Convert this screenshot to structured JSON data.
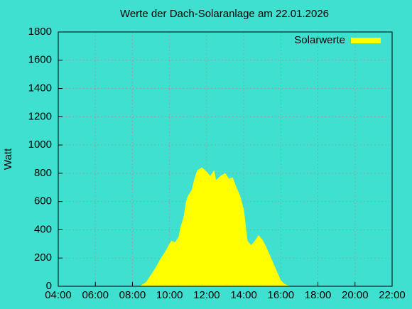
{
  "chart_data": {
    "type": "area",
    "title": "Werte der Dach-Solaranlage am 22.01.2026",
    "y_label": "Watt",
    "series": [
      {
        "name": "Solarwerte",
        "color": "#ffff00",
        "x": [
          8.4,
          8.75,
          9.0,
          9.25,
          9.5,
          9.75,
          10.0,
          10.1,
          10.3,
          10.5,
          10.6,
          10.75,
          10.9,
          11.0,
          11.2,
          11.35,
          11.5,
          11.75,
          12.0,
          12.2,
          12.4,
          12.5,
          12.75,
          13.0,
          13.2,
          13.4,
          13.6,
          13.8,
          14.0,
          14.2,
          14.4,
          14.6,
          14.8,
          15.0,
          15.2,
          15.4,
          15.6,
          15.8,
          16.0,
          16.2,
          16.5
        ],
        "values": [
          0,
          30,
          80,
          130,
          190,
          240,
          300,
          320,
          310,
          350,
          420,
          480,
          600,
          640,
          680,
          760,
          820,
          840,
          810,
          780,
          820,
          750,
          780,
          800,
          760,
          770,
          700,
          640,
          540,
          320,
          290,
          320,
          360,
          330,
          280,
          220,
          160,
          100,
          40,
          15,
          0
        ]
      }
    ],
    "xlim": [
      4,
      22
    ],
    "xticks": [
      {
        "value": 4,
        "label": "04:00"
      },
      {
        "value": 6,
        "label": "06:00"
      },
      {
        "value": 8,
        "label": "08:00"
      },
      {
        "value": 10,
        "label": "10:00"
      },
      {
        "value": 12,
        "label": "12:00"
      },
      {
        "value": 14,
        "label": "14:00"
      },
      {
        "value": 16,
        "label": "16:00"
      },
      {
        "value": 18,
        "label": "18:00"
      },
      {
        "value": 20,
        "label": "20:00"
      },
      {
        "value": 22,
        "label": "22:00"
      }
    ],
    "ylim": [
      0,
      1800
    ],
    "yticks": [
      0,
      200,
      400,
      600,
      800,
      1000,
      1200,
      1400,
      1600,
      1800
    ],
    "grid": true,
    "legend": "top-right",
    "background": "#40e0d0"
  }
}
